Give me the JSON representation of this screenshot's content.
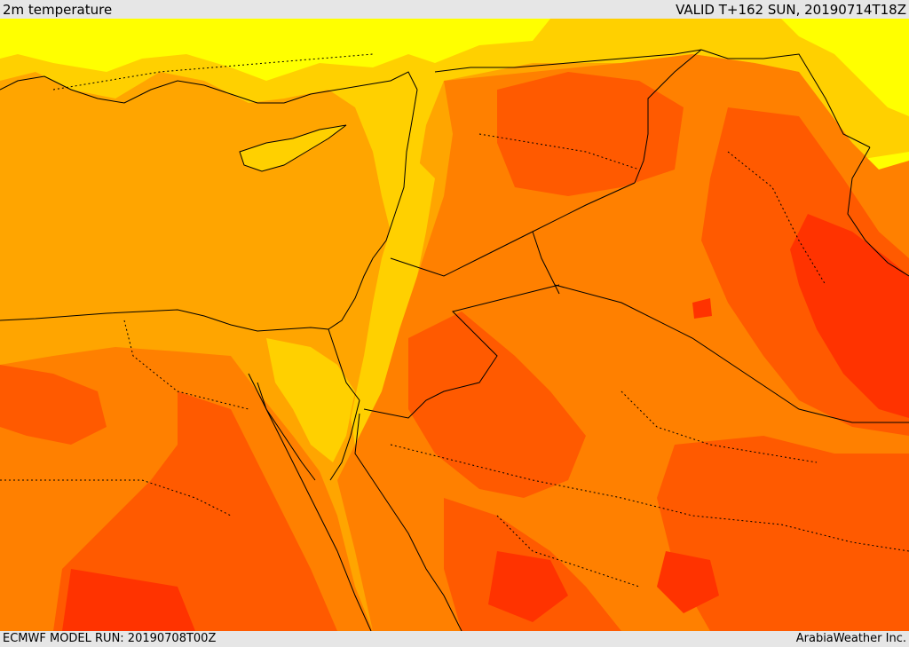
{
  "header": {
    "title": "2m temperature",
    "valid": "VALID T+162 SUN, 20190714T18Z"
  },
  "footer": {
    "model_run": "ECMWF MODEL RUN: 20190708T00Z",
    "credit": "ArabiaWeather Inc."
  },
  "colors": {
    "background": "#e6e6e6",
    "yellow": "#ffff00",
    "light_orange": "#ffd000",
    "orange": "#ffa500",
    "dark_orange": "#ff8000",
    "red_orange": "#ff5a00",
    "red": "#ff3300",
    "border": "#000000"
  }
}
